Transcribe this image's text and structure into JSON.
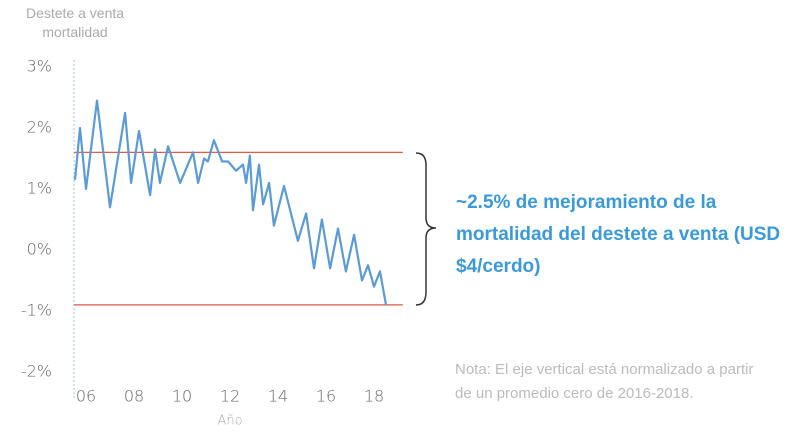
{
  "chart_data": {
    "type": "line",
    "y_label": "Destete a venta mortalidad",
    "x_label": "Año",
    "annotation": "~2.5% de mejoramiento de la mortalidad del destete a venta (USD $4/cerdo)",
    "note": "Nota: El eje vertical está normalizado a partir de un promedio cero de 2016-2018.",
    "color": "#5b9bd5",
    "x": [
      5.54,
      5.75,
      6.0,
      6.46,
      7.0,
      7.63,
      7.88,
      8.21,
      8.67,
      8.88,
      9.08,
      9.42,
      9.92,
      10.46,
      10.67,
      10.92,
      11.08,
      11.33,
      11.67,
      11.92,
      12.25,
      12.54,
      12.67,
      12.83,
      12.96,
      13.21,
      13.38,
      13.63,
      13.83,
      14.25,
      14.83,
      15.17,
      15.5,
      15.83,
      16.17,
      16.5,
      16.83,
      17.17,
      17.5,
      17.75,
      18.0,
      18.25,
      18.5
    ],
    "values": [
      1.15,
      2.0,
      1.0,
      2.45,
      0.7,
      2.25,
      1.1,
      1.95,
      0.9,
      1.65,
      1.1,
      1.7,
      1.1,
      1.6,
      1.1,
      1.5,
      1.45,
      1.8,
      1.45,
      1.45,
      1.3,
      1.4,
      1.1,
      1.55,
      0.65,
      1.4,
      0.75,
      1.1,
      0.4,
      1.05,
      0.15,
      0.6,
      -0.3,
      0.5,
      -0.3,
      0.35,
      -0.35,
      0.25,
      -0.5,
      -0.25,
      -0.6,
      -0.35,
      -0.9
    ],
    "hlines": [
      {
        "value": 1.6,
        "color": "#e05a47"
      },
      {
        "value": -0.9,
        "color": "#e05a47"
      }
    ],
    "xlim": [
      5.5,
      19.2
    ],
    "ylim": [
      -2,
      3
    ],
    "xticks": [
      {
        "value": 6,
        "label": "06"
      },
      {
        "value": 8,
        "label": "08"
      },
      {
        "value": 10,
        "label": "10"
      },
      {
        "value": 12,
        "label": "12"
      },
      {
        "value": 14,
        "label": "14"
      },
      {
        "value": 16,
        "label": "16"
      },
      {
        "value": 18,
        "label": "18"
      }
    ],
    "yticks": [
      {
        "value": 3,
        "label": "3%"
      },
      {
        "value": 2,
        "label": "2%"
      },
      {
        "value": 1,
        "label": "1%"
      },
      {
        "value": 0,
        "label": "0%"
      },
      {
        "value": -1,
        "label": "-1%"
      },
      {
        "value": -2,
        "label": "-2%"
      }
    ],
    "grid": false
  }
}
